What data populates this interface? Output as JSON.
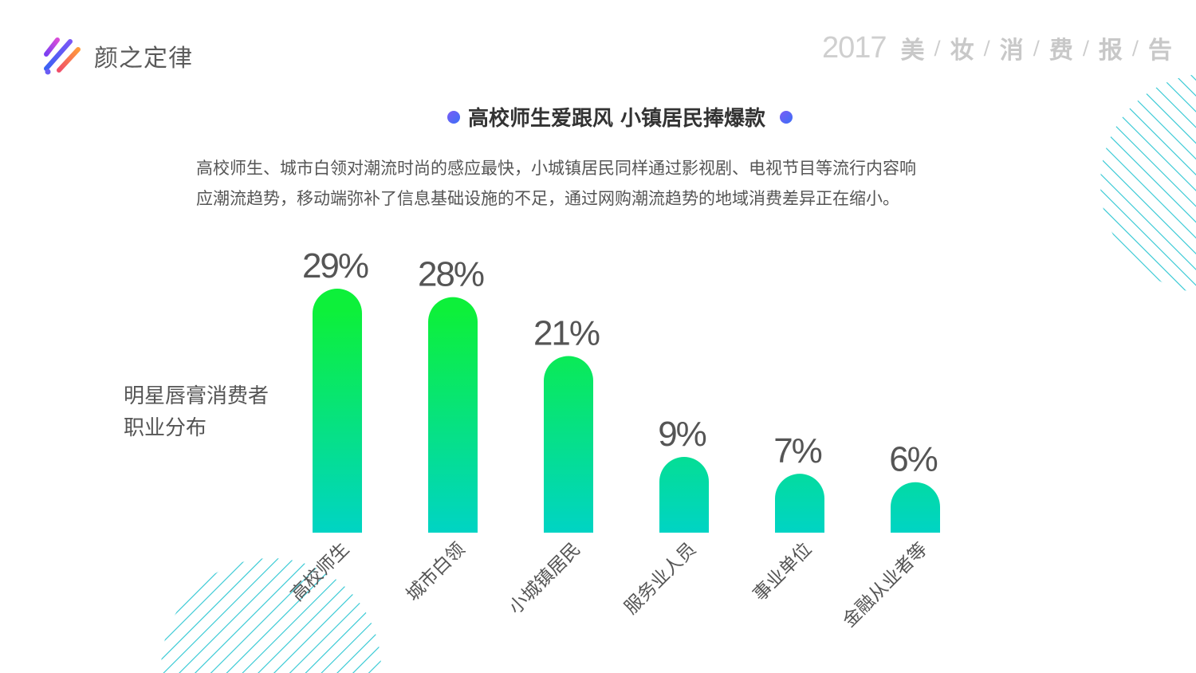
{
  "brand": {
    "name": "颜之定律"
  },
  "report": {
    "year": "2017",
    "title_chars": [
      "美",
      "妆",
      "消",
      "费",
      "报",
      "告"
    ]
  },
  "headline": "高校师生爱跟风 小镇居民捧爆款",
  "description": [
    "高校师生、城市白领对潮流时尚的感应最快，小城镇居民同样通过影视剧、电视节目等流行内容响",
    "应潮流趋势，移动端弥补了信息基础设施的不足，通过网购潮流趋势的地域消费差异正在缩小。"
  ],
  "side_label": [
    "明星唇膏消费者",
    "职业分布"
  ],
  "colors": {
    "bar_top": "#0df03a",
    "bar_bottom": "#00d4c4",
    "stripe": "#2cc6d2"
  },
  "chart_data": {
    "type": "bar",
    "title": "",
    "categories": [
      "高校师生",
      "城市白领",
      "小城镇居民",
      "服务业人员",
      "事业单位",
      "金融从业者等"
    ],
    "values": [
      29,
      28,
      21,
      9,
      7,
      6
    ],
    "value_labels": [
      "29%",
      "28%",
      "21%",
      "9%",
      "7%",
      "6%"
    ],
    "unit": "%",
    "ylim": [
      0,
      30
    ],
    "grid": false,
    "legend": "none"
  }
}
